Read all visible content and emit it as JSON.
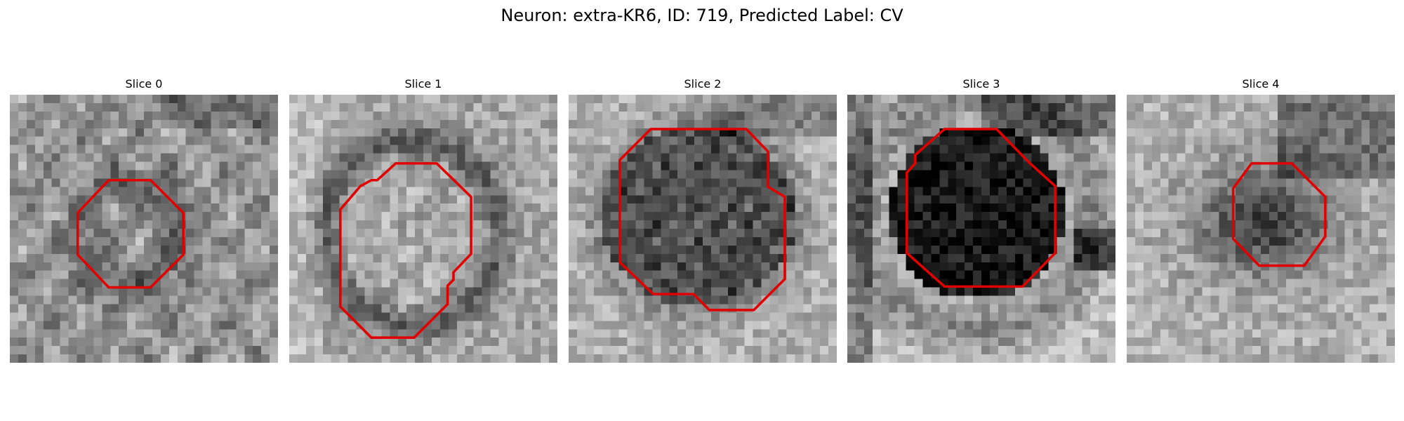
{
  "figure": {
    "title": "Neuron: extra-KR6, ID: 719, Predicted Label: CV"
  },
  "panels": [
    {
      "title": "Slice 0"
    },
    {
      "title": "Slice 1"
    },
    {
      "title": "Slice 2"
    },
    {
      "title": "Slice 3"
    },
    {
      "title": "Slice 4"
    }
  ],
  "style": {
    "contour_color": "#e00000",
    "colormap": "gray"
  }
}
